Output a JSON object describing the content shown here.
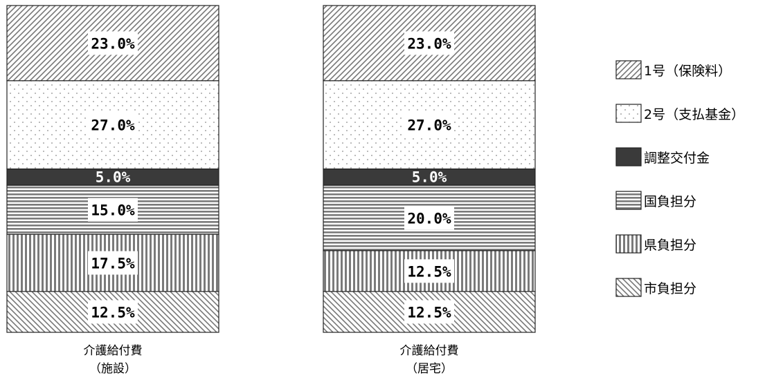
{
  "chart_data": {
    "type": "bar",
    "stacked": true,
    "unit": "%",
    "ylim": [
      0,
      100
    ],
    "categories": [
      {
        "line1": "介護給付費",
        "line2": "（施設）"
      },
      {
        "line1": "介護給付費",
        "line2": "（居宅）"
      }
    ],
    "series": [
      {
        "name": "市負担分",
        "pattern": "diag-back",
        "values": [
          12.5,
          12.5
        ],
        "labels": [
          "12.5%",
          "12.5%"
        ]
      },
      {
        "name": "県負担分",
        "pattern": "vertical",
        "values": [
          17.5,
          12.5
        ],
        "labels": [
          "17.5%",
          "12.5%"
        ]
      },
      {
        "name": "国負担分",
        "pattern": "horizontal",
        "values": [
          15.0,
          20.0
        ],
        "labels": [
          "15.0%",
          "20.0%"
        ]
      },
      {
        "name": "調整交付金",
        "pattern": "solid",
        "values": [
          5.0,
          5.0
        ],
        "labels": [
          "5.0%",
          "5.0%"
        ]
      },
      {
        "name": "2号（支払基金）",
        "pattern": "dots",
        "values": [
          27.0,
          27.0
        ],
        "labels": [
          "27.0%",
          "27.0%"
        ]
      },
      {
        "name": "1号（保険料）",
        "pattern": "diag-fwd",
        "values": [
          23.0,
          23.0
        ],
        "labels": [
          "23.0%",
          "23.0%"
        ]
      }
    ],
    "legend": {
      "position": "right",
      "order": [
        "1号（保険料）",
        "2号（支払基金）",
        "調整交付金",
        "国負担分",
        "県負担分",
        "市負担分"
      ]
    },
    "colors": {
      "stroke": "#222222",
      "pattern": "#777777",
      "solid": "#3a3a3a"
    }
  }
}
